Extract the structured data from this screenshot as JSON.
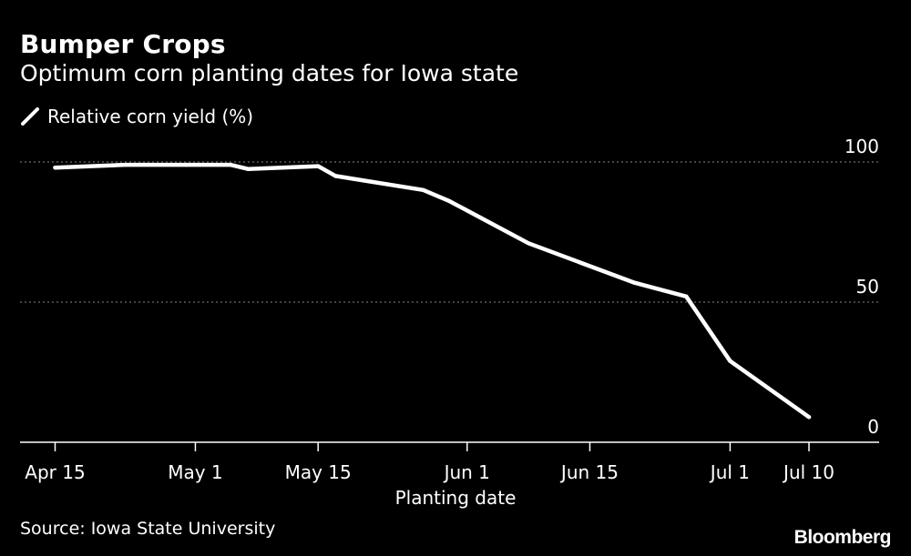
{
  "chart_data": {
    "type": "line",
    "title": "Bumper Crops",
    "subtitle": "Optimum corn planting dates for Iowa state",
    "xlabel": "Planting date",
    "ylabel": "",
    "legend": {
      "placement": "top-left"
    },
    "series": [
      {
        "name": "Relative corn yield (%)",
        "color": "#ffffff",
        "points": [
          {
            "x": "2019-04-15",
            "y": 98
          },
          {
            "x": "2019-04-23",
            "y": 99
          },
          {
            "x": "2019-04-30",
            "y": 99
          },
          {
            "x": "2019-05-05",
            "y": 99
          },
          {
            "x": "2019-05-07",
            "y": 97.5
          },
          {
            "x": "2019-05-15",
            "y": 98.5
          },
          {
            "x": "2019-05-17",
            "y": 95
          },
          {
            "x": "2019-05-27",
            "y": 90
          },
          {
            "x": "2019-05-30",
            "y": 86
          },
          {
            "x": "2019-06-08",
            "y": 71
          },
          {
            "x": "2019-06-20",
            "y": 57
          },
          {
            "x": "2019-06-26",
            "y": 52
          },
          {
            "x": "2019-07-01",
            "y": 29
          },
          {
            "x": "2019-07-10",
            "y": 9
          }
        ]
      }
    ],
    "x_ticks": [
      {
        "date": "2019-04-15",
        "label": "Apr 15"
      },
      {
        "date": "2019-05-01",
        "label": "May 1"
      },
      {
        "date": "2019-05-15",
        "label": "May 15"
      },
      {
        "date": "2019-06-01",
        "label": "Jun 1"
      },
      {
        "date": "2019-06-15",
        "label": "Jun 15"
      },
      {
        "date": "2019-07-01",
        "label": "Jul 1"
      },
      {
        "date": "2019-07-10",
        "label": "Jul 10"
      }
    ],
    "y_ticks": [
      0,
      50,
      100
    ],
    "xlim": [
      "2019-04-11",
      "2019-07-18"
    ],
    "ylim": [
      0,
      100
    ],
    "grid": {
      "horizontal": true,
      "style": "dotted"
    }
  },
  "source": "Source: Iowa State University",
  "brand": "Bloomberg",
  "colors": {
    "background": "#000000",
    "line": "#ffffff",
    "grid": "#888888"
  }
}
